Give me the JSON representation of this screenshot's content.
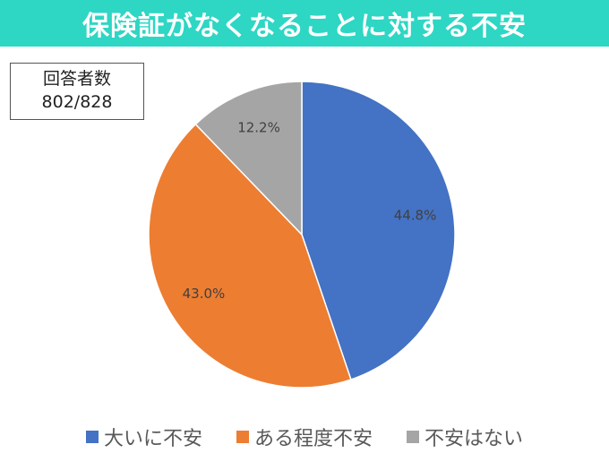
{
  "header": {
    "title": "保険証がなくなることに対する不安"
  },
  "respondents": {
    "label": "回答者数",
    "value": "802/828"
  },
  "chart_data": {
    "type": "pie",
    "title": "保険証がなくなることに対する不安",
    "slices": [
      {
        "label": "大いに不安",
        "value": 44.8,
        "display": "44.8%",
        "color": "#4472c4"
      },
      {
        "label": "ある程度不安",
        "value": 43.0,
        "display": "43.0%",
        "color": "#ed7d31"
      },
      {
        "label": "不安はない",
        "value": 12.2,
        "display": "12.2%",
        "color": "#a5a5a5"
      }
    ],
    "start_angle": "12 o'clock",
    "direction": "clockwise",
    "legend": "bottom"
  }
}
